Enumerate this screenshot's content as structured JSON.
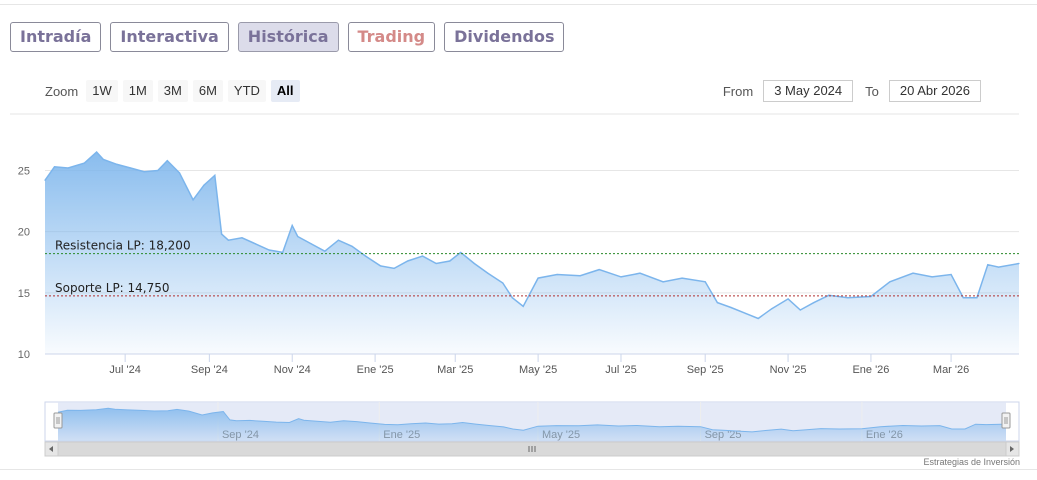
{
  "tabs": [
    {
      "label": "Intradía"
    },
    {
      "label": "Interactiva"
    },
    {
      "label": "Histórica"
    },
    {
      "label": "Trading"
    },
    {
      "label": "Dividendos"
    }
  ],
  "active_tab": "Histórica",
  "zoom": {
    "label": "Zoom",
    "buttons": [
      "1W",
      "1M",
      "3M",
      "6M",
      "YTD",
      "All"
    ],
    "selected": "All"
  },
  "range": {
    "from_label": "From",
    "from_value": "3 May 2024",
    "to_label": "To",
    "to_value": "20 Abr 2026"
  },
  "credit": "Estrategias de Inversión",
  "colors": {
    "line": "#7cb5ec",
    "resistance": "#2a8a2a",
    "support": "#b03030",
    "tab_text": "#7a7299",
    "trading_text": "#d48a88"
  },
  "chart_data": {
    "type": "area",
    "ylim": [
      10,
      27
    ],
    "y_ticks": [
      10,
      15,
      20,
      25
    ],
    "x_ticks": [
      "Jul '24",
      "Sep '24",
      "Nov '24",
      "Ene '25",
      "Mar '25",
      "May '25",
      "Jul '25",
      "Sep '25",
      "Nov '25",
      "Ene '26",
      "Mar '26"
    ],
    "x_tick_dates": [
      "2024-07-01",
      "2024-09-01",
      "2024-11-01",
      "2025-01-01",
      "2025-03-01",
      "2025-05-01",
      "2025-07-01",
      "2025-09-01",
      "2025-11-01",
      "2026-01-01",
      "2026-03-01"
    ],
    "x_range": [
      "2024-05-03",
      "2026-04-20"
    ],
    "x": [
      "2024-05-03",
      "2024-05-10",
      "2024-05-20",
      "2024-06-01",
      "2024-06-10",
      "2024-06-15",
      "2024-06-25",
      "2024-07-05",
      "2024-07-15",
      "2024-07-25",
      "2024-08-01",
      "2024-08-10",
      "2024-08-20",
      "2024-08-28",
      "2024-09-05",
      "2024-09-10",
      "2024-09-15",
      "2024-09-25",
      "2024-10-05",
      "2024-10-15",
      "2024-10-25",
      "2024-11-01",
      "2024-11-05",
      "2024-11-15",
      "2024-11-25",
      "2024-12-05",
      "2024-12-15",
      "2024-12-25",
      "2025-01-05",
      "2025-01-15",
      "2025-01-25",
      "2025-02-05",
      "2025-02-15",
      "2025-02-25",
      "2025-03-05",
      "2025-03-15",
      "2025-03-25",
      "2025-04-05",
      "2025-04-12",
      "2025-04-20",
      "2025-05-01",
      "2025-05-15",
      "2025-06-01",
      "2025-06-15",
      "2025-07-01",
      "2025-07-15",
      "2025-08-01",
      "2025-08-15",
      "2025-09-01",
      "2025-09-10",
      "2025-09-20",
      "2025-10-01",
      "2025-10-10",
      "2025-10-20",
      "2025-11-01",
      "2025-11-10",
      "2025-11-20",
      "2025-12-01",
      "2025-12-15",
      "2026-01-01",
      "2026-01-15",
      "2026-02-01",
      "2026-02-15",
      "2026-03-01",
      "2026-03-10",
      "2026-03-20",
      "2026-03-28",
      "2026-04-05",
      "2026-04-20"
    ],
    "values": [
      24.2,
      25.3,
      25.2,
      25.6,
      26.5,
      25.9,
      25.5,
      25.2,
      24.9,
      25.0,
      25.8,
      24.8,
      22.6,
      23.8,
      24.6,
      19.8,
      19.3,
      19.5,
      19.0,
      18.5,
      18.3,
      20.5,
      19.6,
      19.0,
      18.4,
      19.3,
      18.8,
      18.0,
      17.2,
      17.0,
      17.6,
      18.0,
      17.4,
      17.6,
      18.3,
      17.4,
      16.6,
      15.8,
      14.6,
      13.9,
      16.2,
      16.5,
      16.4,
      16.9,
      16.3,
      16.6,
      15.9,
      16.2,
      15.9,
      14.2,
      13.8,
      13.3,
      12.9,
      13.7,
      14.5,
      13.6,
      14.2,
      14.8,
      14.6,
      14.7,
      15.9,
      16.6,
      16.3,
      16.5,
      14.6,
      14.6,
      17.3,
      17.1,
      17.4
    ],
    "annotations": [
      {
        "label": "Resistencia LP: 18,200",
        "value": 18.2
      },
      {
        "label": "Soporte LP: 14,750",
        "value": 14.75
      }
    ],
    "navigator_labels": [
      "Sep '24",
      "Ene '25",
      "May '25",
      "Sep '25",
      "Ene '26"
    ],
    "navigator_label_dates": [
      "2024-09-01",
      "2025-01-01",
      "2025-05-01",
      "2025-09-01",
      "2026-01-01"
    ]
  }
}
